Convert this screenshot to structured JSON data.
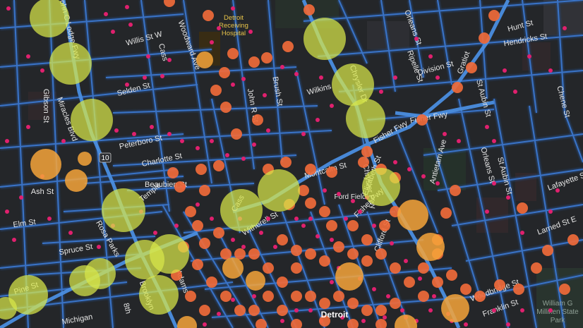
{
  "map": {
    "colors": {
      "background": "#242629",
      "block": "#2b2d31",
      "street": "#3a73c6",
      "street_glow": "#274e86",
      "freeway": "#4a8ee0",
      "incident_small": "#e0206e",
      "incident_medium": "#f06a3a",
      "incident_large": "#f6a53a",
      "incident_xlarge": "#d8e84a"
    },
    "place_label": "Detroit",
    "poi": {
      "hospital_line1": "Detroit",
      "hospital_line2": "Receiving",
      "hospital_line3": "Hospital",
      "ford_field": "Ford Field",
      "park_line1": "William G",
      "park_line2": "Milliken State",
      "park_line3": "Park"
    },
    "shield": "10",
    "streets": [
      "Willis St W",
      "Selden St",
      "Peterboro St",
      "Charlotte St",
      "Temple",
      "Ash St",
      "Elm St",
      "Spruce St",
      "Pine St",
      "Michigan",
      "Gibson St",
      "Miracles Blvd",
      "Rosa Parks",
      "John C Lodge Fwy",
      "Cass",
      "Woodward Ave",
      "John R St",
      "Brush St",
      "Wilkins",
      "Chrysler Dr",
      "Fisher Fwy",
      "Orleans St",
      "Ripelle St",
      "Division St",
      "Gratiot",
      "Hunt St",
      "Hendricks St",
      "Chene St",
      "St Aubin St",
      "Antietam Ave",
      "Orleans St",
      "St Aubin St",
      "Lafayette St",
      "Larned St E",
      "Woodbridge St",
      "Franklin St",
      "Montcalm St",
      "Fisher Fwy",
      "Witherell St",
      "Cass",
      "Clifford St",
      "Elizabeth St",
      "Fisher Fwy",
      "8th",
      "Brooklyn",
      "Adams",
      "Chrysler Fwy",
      "Beaubien St"
    ],
    "legend_note": ""
  }
}
